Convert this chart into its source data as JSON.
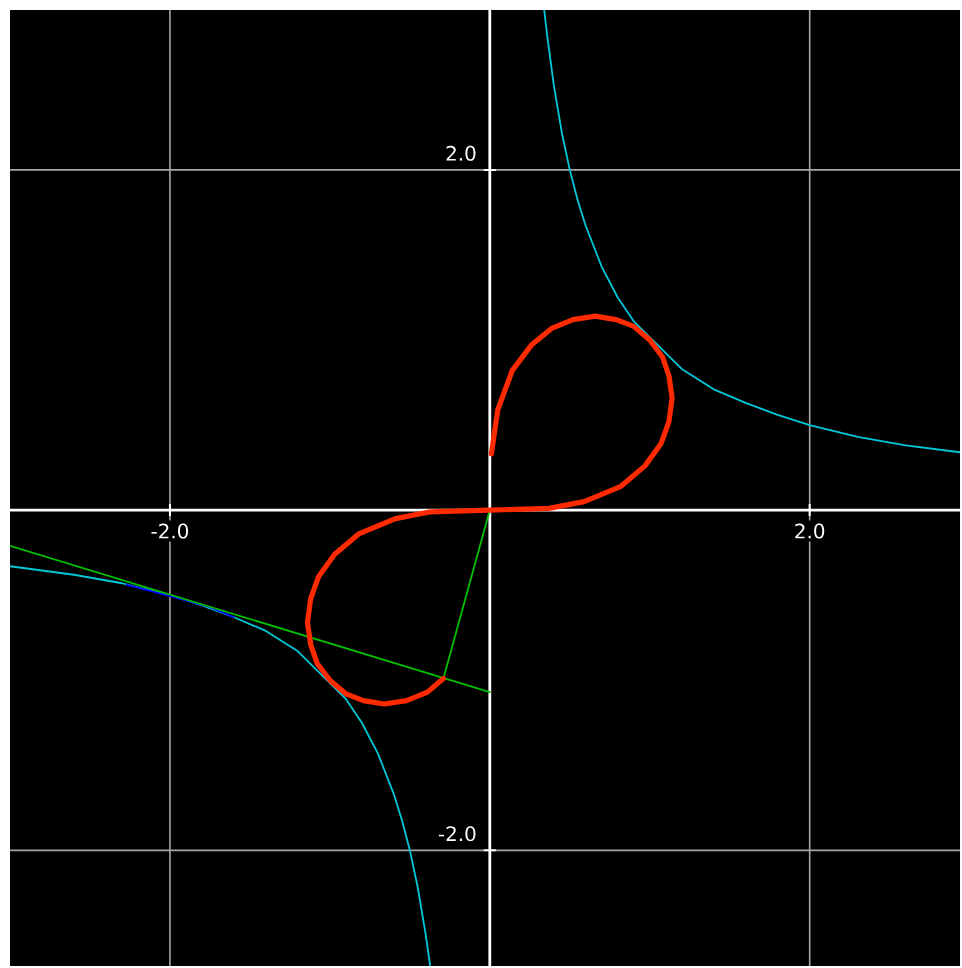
{
  "chart_data": {
    "type": "line",
    "xlim": [
      -3.0,
      2.94
    ],
    "ylim": [
      -2.68,
      2.94
    ],
    "xticks": [
      {
        "value": -2,
        "label": "-2.0"
      },
      {
        "value": 2,
        "label": "2.0"
      }
    ],
    "yticks": [
      {
        "value": -2,
        "label": "-2.0"
      },
      {
        "value": 2,
        "label": "2.0"
      }
    ],
    "grid": true,
    "series": [
      {
        "color": "#00c8d8",
        "x": [
          0.34,
          0.36,
          0.4,
          0.45,
          0.5,
          0.55,
          0.6,
          0.7,
          0.8,
          0.9,
          1.2,
          1.4,
          1.6,
          1.8,
          2.0,
          2.3,
          2.6,
          2.94
        ],
        "values": [
          2.94,
          2.78,
          2.5,
          2.22,
          2.0,
          1.82,
          1.67,
          1.43,
          1.25,
          1.11,
          0.83,
          0.71,
          0.63,
          0.56,
          0.5,
          0.43,
          0.38,
          0.34
        ]
      },
      {
        "color": "#00c8d8",
        "x": [
          -3.0,
          -2.6,
          -2.3,
          -2.0,
          -1.8,
          -1.6,
          -1.4,
          -1.2,
          -0.9,
          -0.8,
          -0.7,
          -0.6,
          -0.55,
          -0.5,
          -0.45,
          -0.4,
          -0.373
        ],
        "values": [
          -0.33,
          -0.38,
          -0.43,
          -0.5,
          -0.56,
          -0.63,
          -0.71,
          -0.83,
          -1.11,
          -1.25,
          -1.43,
          -1.67,
          -1.82,
          -2.0,
          -2.22,
          -2.5,
          -2.68
        ]
      },
      {
        "color": "#0000ff",
        "x": [
          -2.27,
          -2.1,
          -1.9,
          -1.75,
          -1.6
        ],
        "values": [
          -0.44,
          -0.48,
          -0.53,
          -0.57,
          -0.63
        ]
      },
      {
        "color": "#00c000",
        "x": [
          -3.0,
          0.0
        ],
        "values": [
          -0.21,
          -1.07
        ]
      },
      {
        "color": "#00c000",
        "x": [
          0.0,
          -0.29
        ],
        "values": [
          0.0,
          -0.99
        ]
      },
      {
        "color": "#ff2a00",
        "x": [
          -0.29,
          -0.39,
          -0.52,
          -0.66,
          -0.79,
          -0.9,
          -1.0,
          -1.08,
          -1.12,
          -1.14,
          -1.12,
          -1.07,
          -0.97,
          -0.82,
          -0.59,
          -0.37,
          0.0,
          0.37,
          0.59,
          0.82,
          0.97,
          1.07,
          1.12,
          1.14,
          1.12,
          1.08,
          1.0,
          0.9,
          0.79,
          0.66,
          0.52,
          0.39,
          0.26,
          0.14,
          0.05,
          0.01
        ],
        "values": [
          -0.99,
          -1.07,
          -1.12,
          -1.14,
          -1.12,
          -1.08,
          -1.0,
          -0.9,
          -0.79,
          -0.66,
          -0.52,
          -0.39,
          -0.26,
          -0.14,
          -0.05,
          -0.01,
          0.0,
          0.01,
          0.05,
          0.14,
          0.26,
          0.39,
          0.52,
          0.66,
          0.79,
          0.9,
          1.0,
          1.08,
          1.12,
          1.14,
          1.12,
          1.07,
          0.97,
          0.82,
          0.59,
          0.33
        ]
      }
    ]
  }
}
